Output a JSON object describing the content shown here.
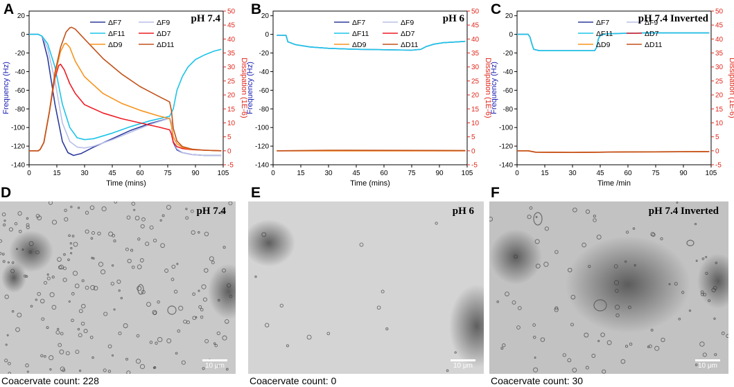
{
  "panels": [
    {
      "letter": "A"
    },
    {
      "letter": "B"
    },
    {
      "letter": "C"
    },
    {
      "letter": "D"
    },
    {
      "letter": "E"
    },
    {
      "letter": "F"
    }
  ],
  "colors": {
    "F7": "#2b3a9c",
    "F9": "#b9bfe8",
    "F11": "#1cc4e8",
    "D7": "#ee1c24",
    "D9": "#f7941d",
    "D11": "#c1521a",
    "left_axis": "#1a21b0",
    "right_axis": "#e0261b"
  },
  "chart_data": [
    {
      "type": "line",
      "panel": "A",
      "ph_label": "pH 7.4",
      "xlabel": "Time (mins)",
      "ylabel": "Frequency (Hz)",
      "y2label": "Dissipation (1E-6)",
      "xlim": [
        0,
        105
      ],
      "ylim": [
        -140,
        25
      ],
      "y2lim": [
        -5,
        50
      ],
      "xticks": [
        "0",
        "15",
        "30",
        "45",
        "60",
        "75",
        "90",
        "105"
      ],
      "yticks": [
        "20",
        "0",
        "-20",
        "-40",
        "-60",
        "-80",
        "-100",
        "-120",
        "-140"
      ],
      "y2ticks": [
        "50",
        "45",
        "40",
        "35",
        "30",
        "25",
        "20",
        "15",
        "10",
        "5",
        "0",
        "-5"
      ],
      "legend": [
        "ΔF7",
        "ΔD7",
        "ΔF9",
        "ΔD9",
        "ΔF11",
        "ΔD11"
      ],
      "series": [
        {
          "name": "ΔF7",
          "axis": "left",
          "color_key": "F7",
          "x": [
            0,
            5,
            7,
            10,
            14,
            18,
            21,
            24,
            28,
            35,
            45,
            55,
            65,
            76,
            77,
            78,
            80,
            83,
            88,
            95,
            104
          ],
          "y": [
            0,
            0,
            -2,
            -25,
            -75,
            -115,
            -127,
            -130,
            -128,
            -121,
            -112,
            -103,
            -96,
            -90,
            -95,
            -116,
            -124,
            -127,
            -129,
            -130,
            -130
          ]
        },
        {
          "name": "ΔF9",
          "axis": "left",
          "color_key": "F9",
          "x": [
            0,
            5,
            7,
            10,
            14,
            18,
            22,
            26,
            30,
            35,
            45,
            55,
            65,
            76,
            77,
            78,
            80,
            83,
            88,
            95,
            104
          ],
          "y": [
            0,
            0,
            -2,
            -15,
            -50,
            -95,
            -115,
            -121,
            -122,
            -120,
            -113,
            -105,
            -97,
            -90,
            -94,
            -114,
            -123,
            -127,
            -129,
            -130,
            -130
          ]
        },
        {
          "name": "ΔF11",
          "axis": "left",
          "color_key": "F11",
          "x": [
            0,
            5,
            7,
            10,
            14,
            18,
            22,
            26,
            30,
            35,
            45,
            55,
            65,
            76,
            78,
            80,
            83,
            86,
            90,
            95,
            100,
            104
          ],
          "y": [
            0,
            0,
            -2,
            -10,
            -35,
            -75,
            -100,
            -111,
            -113,
            -112,
            -106,
            -99,
            -93,
            -88,
            -80,
            -60,
            -45,
            -35,
            -27,
            -22,
            -18,
            -16
          ]
        },
        {
          "name": "ΔD7",
          "axis": "right",
          "color_key": "D7",
          "x": [
            0,
            5,
            6,
            8,
            11,
            14,
            16,
            17,
            19,
            22,
            25,
            30,
            40,
            50,
            60,
            70,
            76,
            77,
            78,
            80,
            83,
            88,
            95,
            104
          ],
          "y": [
            0,
            0,
            0.5,
            3,
            14,
            26,
            30.5,
            31,
            29,
            24,
            20.5,
            16.5,
            13.5,
            11.5,
            10,
            8.5,
            7.5,
            6,
            3,
            1.5,
            0.8,
            0.4,
            0.2,
            0
          ]
        },
        {
          "name": "ΔD9",
          "axis": "right",
          "color_key": "D9",
          "x": [
            0,
            5,
            6,
            8,
            11,
            14,
            17,
            19,
            20,
            22,
            25,
            30,
            40,
            50,
            60,
            70,
            76,
            77,
            78,
            80,
            83,
            88,
            95,
            104
          ],
          "y": [
            0,
            0,
            0.5,
            3,
            14,
            27,
            35.5,
            38.2,
            38.5,
            37,
            32,
            26.5,
            20.5,
            17,
            14.5,
            12.5,
            11.5,
            9,
            5,
            2.5,
            1.2,
            0.5,
            0.2,
            0
          ]
        },
        {
          "name": "ΔD11",
          "axis": "right",
          "color_key": "D11",
          "x": [
            0,
            5,
            6,
            8,
            11,
            14,
            17,
            20,
            22,
            23,
            25,
            30,
            40,
            50,
            60,
            70,
            76,
            77,
            78,
            80,
            83,
            88,
            95,
            104
          ],
          "y": [
            0,
            0,
            0.5,
            3,
            14,
            28,
            37,
            42.5,
            44,
            44.2,
            43.5,
            40,
            33,
            27.5,
            23,
            19.5,
            17.5,
            14.5,
            8,
            3.5,
            1.5,
            0.6,
            0.2,
            0
          ]
        }
      ]
    },
    {
      "type": "line",
      "panel": "B",
      "ph_label": "pH 6",
      "xlabel": "Time (mins)",
      "ylabel": "Frequency (Hz)",
      "y2label": "Dissipation (1E-6)",
      "xlim": [
        0,
        105
      ],
      "ylim": [
        -140,
        25
      ],
      "y2lim": [
        -5,
        50
      ],
      "xticks": [
        "0",
        "15",
        "30",
        "45",
        "60",
        "75",
        "90",
        "105"
      ],
      "yticks": [
        "20",
        "0",
        "-20",
        "-40",
        "-60",
        "-80",
        "-100",
        "-120",
        "-140"
      ],
      "y2ticks": [
        "50",
        "45",
        "40",
        "35",
        "30",
        "25",
        "20",
        "15",
        "10",
        "5",
        "0",
        "-5"
      ],
      "legend": [
        "ΔF7",
        "ΔD7",
        "ΔF9",
        "ΔD9",
        "ΔF11",
        "ΔD11"
      ],
      "series": [
        {
          "name": "ΔF7",
          "axis": "left",
          "color_key": "F7",
          "x": [
            2,
            7,
            8,
            12,
            20,
            30,
            45,
            60,
            75,
            80,
            83,
            87,
            92,
            100,
            104
          ],
          "y": [
            -1,
            -1,
            -8,
            -11,
            -13.5,
            -15,
            -16,
            -16.5,
            -17,
            -16,
            -13,
            -10.5,
            -9,
            -8,
            -7.5
          ]
        },
        {
          "name": "ΔF9",
          "axis": "left",
          "color_key": "F9",
          "x": [
            2,
            7,
            8,
            12,
            20,
            30,
            45,
            60,
            75,
            80,
            83,
            87,
            92,
            100,
            104
          ],
          "y": [
            -1,
            -1,
            -8,
            -11,
            -13.5,
            -15,
            -16,
            -16.5,
            -17,
            -16,
            -13,
            -10.5,
            -9,
            -8,
            -7.5
          ]
        },
        {
          "name": "ΔF11",
          "axis": "left",
          "color_key": "F11",
          "x": [
            2,
            7,
            8,
            12,
            20,
            30,
            45,
            60,
            75,
            80,
            83,
            87,
            92,
            100,
            104
          ],
          "y": [
            -1,
            -1,
            -8,
            -11,
            -13.5,
            -15,
            -16,
            -16.5,
            -17,
            -16,
            -13,
            -10.5,
            -9,
            -8,
            -7.5
          ]
        },
        {
          "name": "ΔD7",
          "axis": "right",
          "color_key": "D7",
          "x": [
            2,
            104
          ],
          "y": [
            0,
            0
          ]
        },
        {
          "name": "ΔD9",
          "axis": "right",
          "color_key": "D9",
          "x": [
            2,
            104
          ],
          "y": [
            0,
            0
          ]
        },
        {
          "name": "ΔD11",
          "axis": "right",
          "color_key": "D11",
          "x": [
            2,
            30,
            104
          ],
          "y": [
            0,
            0.2,
            0.1
          ]
        }
      ]
    },
    {
      "type": "line",
      "panel": "C",
      "ph_label": "pH 7.4 Inverted",
      "xlabel": "Time /min",
      "ylabel": "Frequency (Hz)",
      "y2label": "Dissipation (1E-6)",
      "xlim": [
        0,
        105
      ],
      "ylim": [
        -140,
        25
      ],
      "y2lim": [
        -5,
        50
      ],
      "xticks": [
        "0",
        "15",
        "30",
        "45",
        "60",
        "75",
        "90",
        "105"
      ],
      "yticks": [
        "20",
        "0",
        "-20",
        "-40",
        "-60",
        "-80",
        "-100",
        "-120",
        "-140"
      ],
      "y2ticks": [
        "50",
        "45",
        "40",
        "35",
        "30",
        "25",
        "20",
        "15",
        "10",
        "5",
        "0",
        "-5"
      ],
      "legend": [
        "ΔF7",
        "ΔD7",
        "ΔF9",
        "ΔD9",
        "ΔF11",
        "ΔD11"
      ],
      "series": [
        {
          "name": "ΔF7",
          "axis": "left",
          "color_key": "F7",
          "x": [
            0,
            6,
            7,
            8,
            9,
            12,
            20,
            30,
            42,
            43,
            44,
            45,
            48,
            55,
            70,
            90,
            104
          ],
          "y": [
            0,
            0,
            -3,
            -10,
            -16,
            -17.5,
            -17.5,
            -17.5,
            -17.5,
            -14,
            -5,
            -1,
            0.5,
            1,
            1.5,
            1.5,
            1.5
          ]
        },
        {
          "name": "ΔF9",
          "axis": "left",
          "color_key": "F9",
          "x": [
            0,
            6,
            7,
            8,
            9,
            12,
            20,
            30,
            42,
            43,
            44,
            45,
            48,
            55,
            70,
            90,
            104
          ],
          "y": [
            0,
            0,
            -3,
            -10,
            -16,
            -17.5,
            -17.5,
            -17.5,
            -17.5,
            -14,
            -5,
            -1,
            0.5,
            1,
            1.5,
            1.5,
            1.5
          ]
        },
        {
          "name": "ΔF11",
          "axis": "left",
          "color_key": "F11",
          "x": [
            0,
            6,
            7,
            8,
            9,
            12,
            20,
            30,
            42,
            43,
            44,
            45,
            48,
            55,
            70,
            90,
            104
          ],
          "y": [
            0,
            0,
            -3,
            -10,
            -16,
            -17.5,
            -17.5,
            -17.5,
            -17.5,
            -14,
            -5,
            -1,
            0.5,
            1,
            1.5,
            1.5,
            1.5
          ]
        },
        {
          "name": "ΔD7",
          "axis": "right",
          "color_key": "D7",
          "x": [
            0,
            6,
            10,
            30,
            60,
            104
          ],
          "y": [
            0,
            0,
            -0.5,
            -0.6,
            -0.4,
            -0.3
          ]
        },
        {
          "name": "ΔD9",
          "axis": "right",
          "color_key": "D9",
          "x": [
            0,
            6,
            10,
            30,
            60,
            104
          ],
          "y": [
            0,
            0,
            -0.5,
            -0.6,
            -0.4,
            -0.3
          ]
        },
        {
          "name": "ΔD11",
          "axis": "right",
          "color_key": "D11",
          "x": [
            0,
            6,
            10,
            30,
            60,
            104
          ],
          "y": [
            0,
            0,
            -0.5,
            -0.6,
            -0.4,
            -0.3
          ]
        }
      ]
    }
  ],
  "micrographs": [
    {
      "panel": "D",
      "ph_label": "pH 7.4",
      "scale_label": "10 μm",
      "count_text": "Coacervate count: 228",
      "count": 228
    },
    {
      "panel": "E",
      "ph_label": "pH 6",
      "scale_label": "10 μm",
      "count_text": "Coacervate count: 0",
      "count": 0
    },
    {
      "panel": "F",
      "ph_label": "pH 7.4 Inverted",
      "scale_label": "10 μm",
      "count_text": "Coacervate count: 30",
      "count": 30
    }
  ]
}
